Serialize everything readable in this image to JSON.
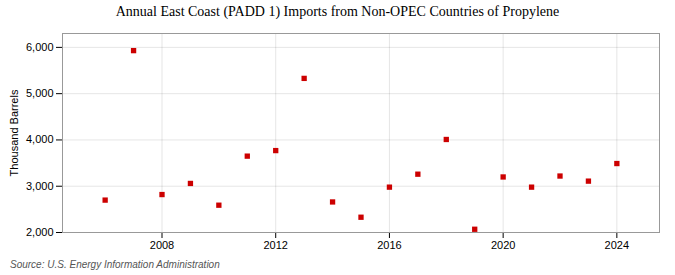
{
  "chart_data": {
    "type": "scatter",
    "title": "Annual East Coast (PADD 1) Imports from Non-OPEC Countries of Propylene",
    "ylabel": "Thousand Barrels",
    "source": "Source: U.S. Energy Information Administration",
    "x": [
      2006,
      2007,
      2008,
      2009,
      2010,
      2011,
      2012,
      2013,
      2014,
      2015,
      2016,
      2017,
      2018,
      2019,
      2020,
      2021,
      2022,
      2023,
      2024
    ],
    "values": [
      2700,
      5930,
      2820,
      3060,
      2590,
      3650,
      3770,
      5330,
      2660,
      2330,
      2980,
      3260,
      4010,
      2070,
      3200,
      2980,
      3220,
      3110,
      3490
    ],
    "color": "#cc0000",
    "marker": "square",
    "xlim": [
      2004.5,
      2025.5
    ],
    "xticks": [
      2008,
      2012,
      2016,
      2020,
      2024
    ],
    "ylim": [
      2000,
      6300
    ],
    "yticks": [
      {
        "value": 2000,
        "label": "2,000"
      },
      {
        "value": 3000,
        "label": "3,000"
      },
      {
        "value": 4000,
        "label": "4,000"
      },
      {
        "value": 5000,
        "label": "5,000"
      },
      {
        "value": 6000,
        "label": "6,000"
      }
    ],
    "grid": true
  }
}
